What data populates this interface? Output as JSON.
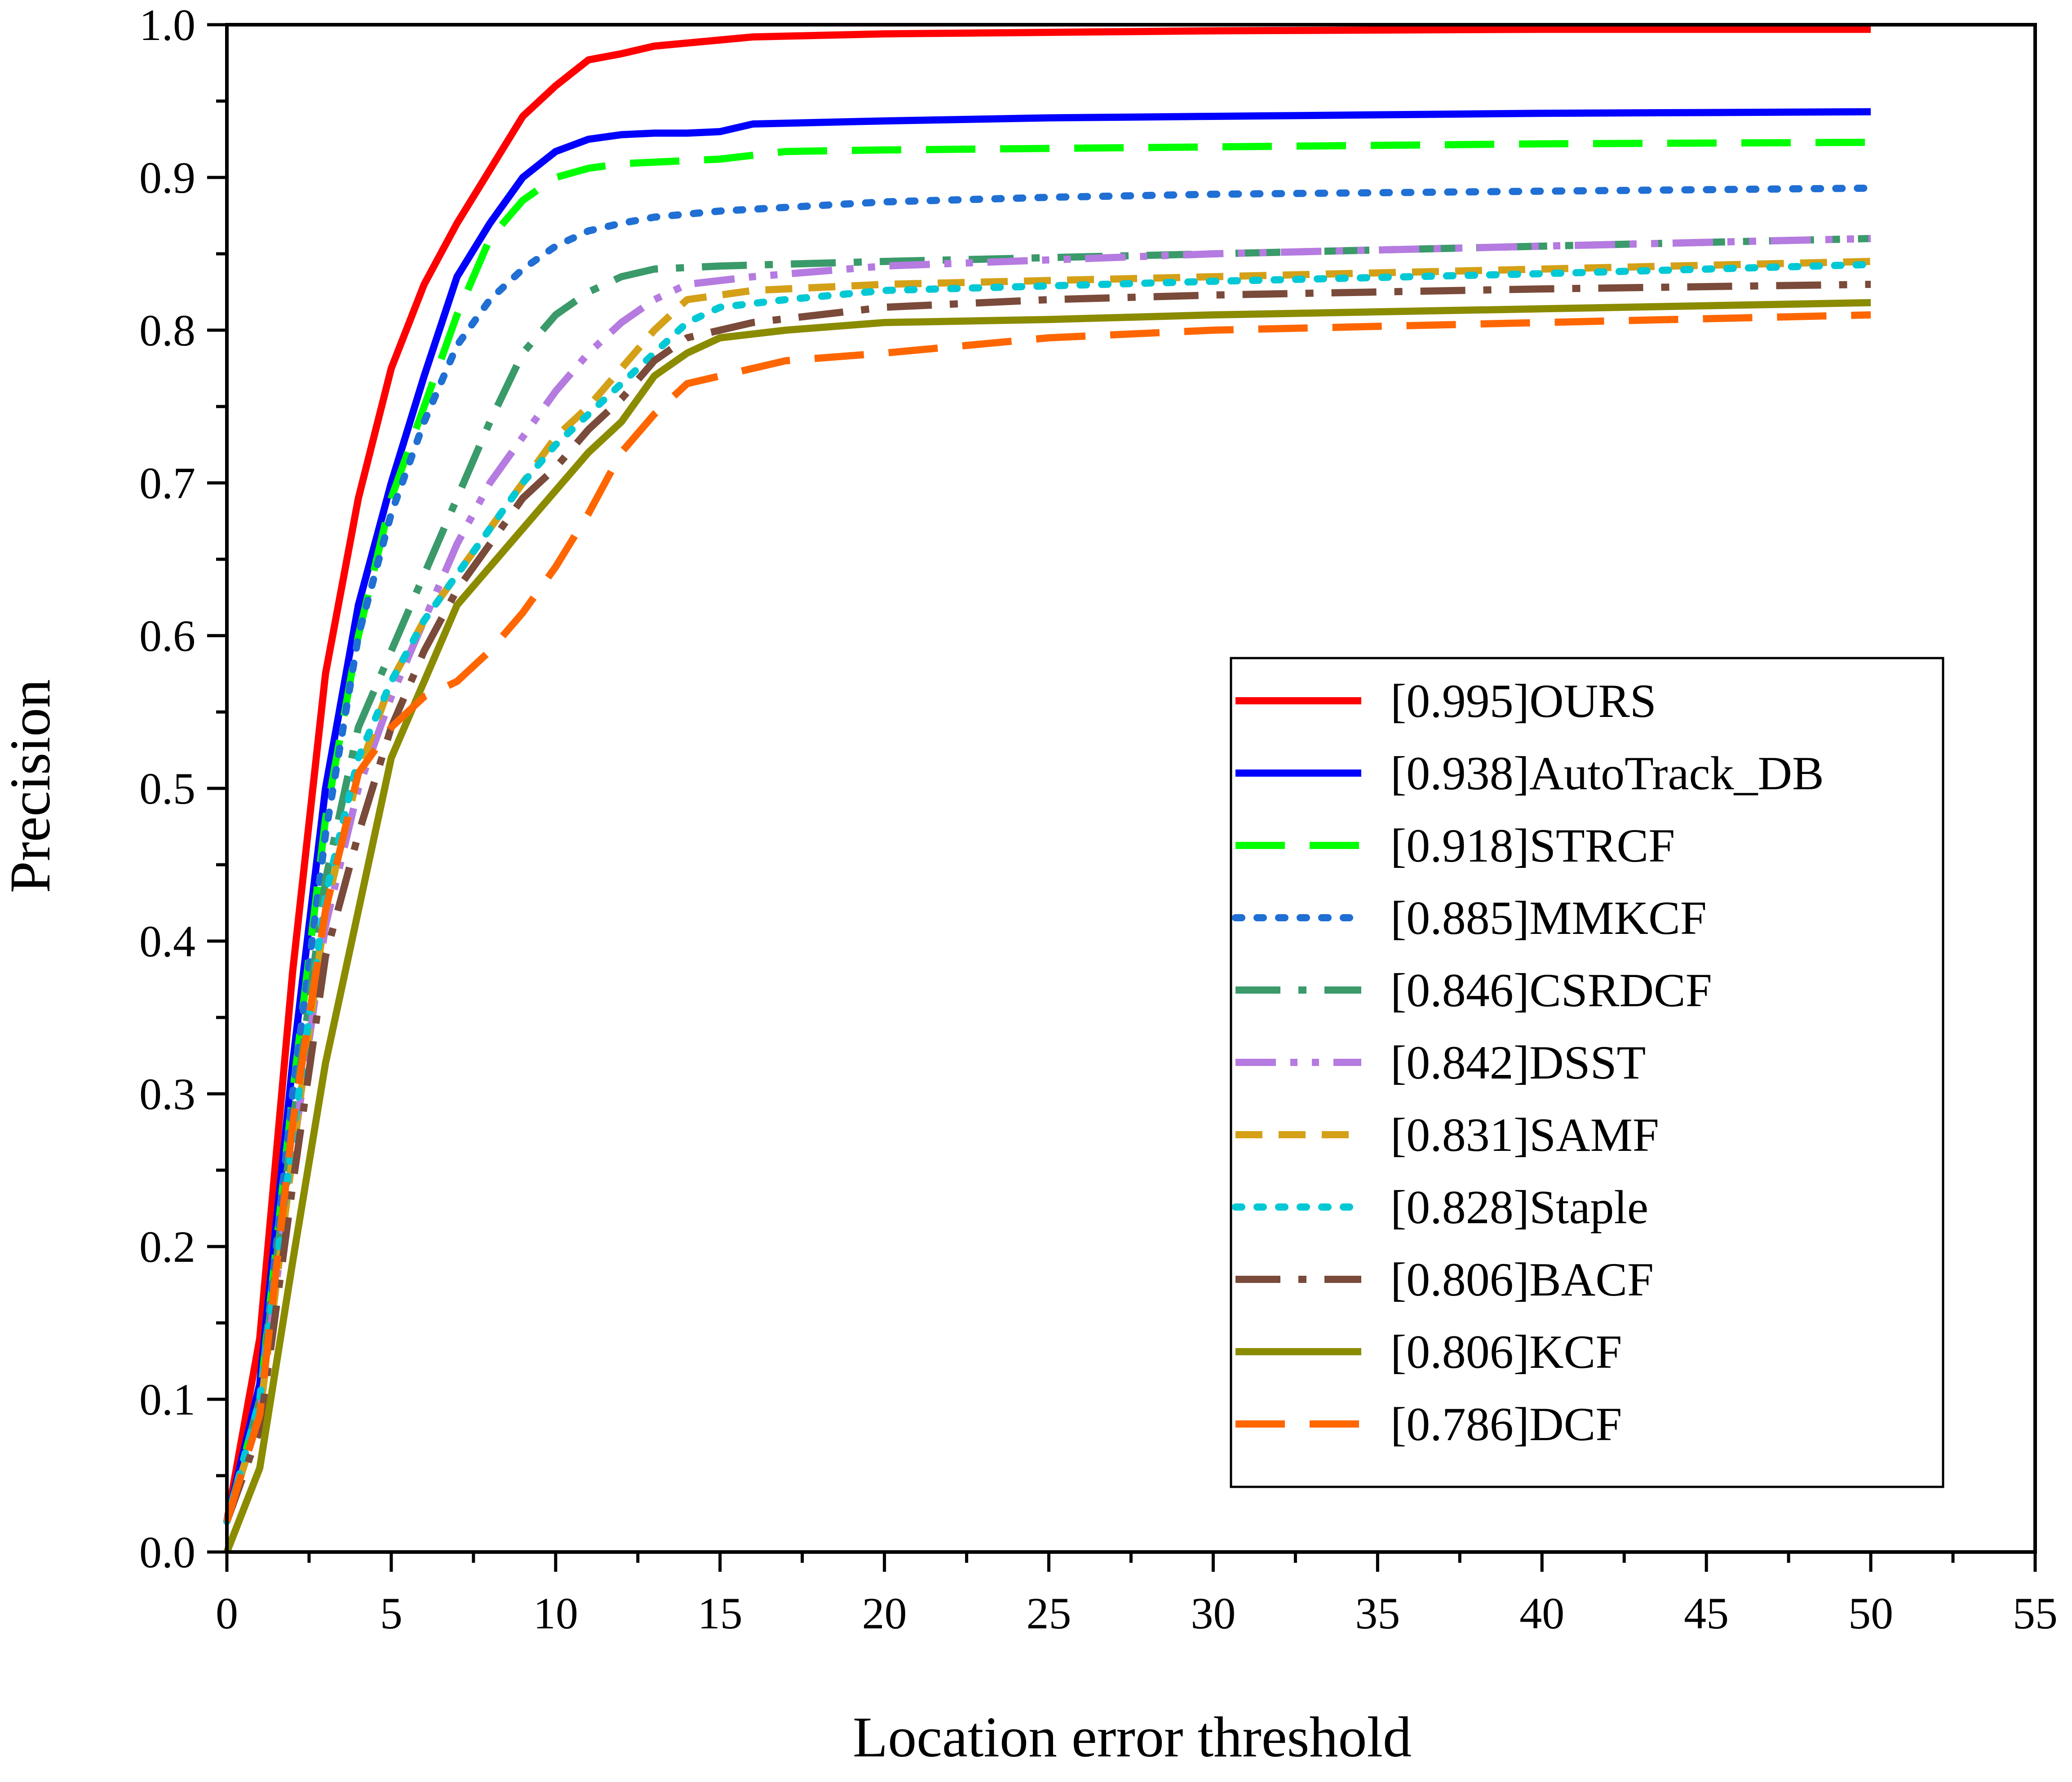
{
  "chart_data": {
    "type": "line",
    "title": "",
    "xlabel": "Location error threshold",
    "ylabel": "Precision",
    "xlim": [
      0,
      55
    ],
    "ylim": [
      0,
      1.0
    ],
    "x_ticks": [
      "0",
      "5",
      "10",
      "15",
      "20",
      "25",
      "30",
      "35",
      "40",
      "45",
      "50",
      "55"
    ],
    "y_ticks": [
      "0.0",
      "0.1",
      "0.2",
      "0.3",
      "0.4",
      "0.5",
      "0.6",
      "0.7",
      "0.8",
      "0.9",
      "1.0"
    ],
    "grid": false,
    "legend_position": "bottom-right",
    "series": [
      {
        "name": "[0.995]OURS",
        "color": "#ff0000",
        "dash": "solid",
        "points": [
          [
            0,
            0.02
          ],
          [
            1,
            0.14
          ],
          [
            2,
            0.38
          ],
          [
            3,
            0.575
          ],
          [
            4,
            0.69
          ],
          [
            5,
            0.775
          ],
          [
            6,
            0.83
          ],
          [
            7,
            0.87
          ],
          [
            8,
            0.905
          ],
          [
            9,
            0.94
          ],
          [
            10,
            0.96
          ],
          [
            11,
            0.977
          ],
          [
            12,
            0.981
          ],
          [
            13,
            0.986
          ],
          [
            14,
            0.988
          ],
          [
            15,
            0.99
          ],
          [
            16,
            0.992
          ],
          [
            18,
            0.993
          ],
          [
            20,
            0.994
          ],
          [
            25,
            0.995
          ],
          [
            30,
            0.996
          ],
          [
            40,
            0.997
          ],
          [
            50,
            0.997
          ]
        ]
      },
      {
        "name": "[0.938]AutoTrack_DB",
        "color": "#0000ff",
        "dash": "solid",
        "points": [
          [
            0,
            0.02
          ],
          [
            1,
            0.11
          ],
          [
            2,
            0.32
          ],
          [
            3,
            0.5
          ],
          [
            4,
            0.62
          ],
          [
            5,
            0.7
          ],
          [
            6,
            0.77
          ],
          [
            7,
            0.835
          ],
          [
            8,
            0.87
          ],
          [
            9,
            0.9
          ],
          [
            10,
            0.917
          ],
          [
            11,
            0.925
          ],
          [
            12,
            0.928
          ],
          [
            13,
            0.929
          ],
          [
            14,
            0.929
          ],
          [
            15,
            0.93
          ],
          [
            16,
            0.935
          ],
          [
            20,
            0.937
          ],
          [
            25,
            0.939
          ],
          [
            30,
            0.94
          ],
          [
            40,
            0.942
          ],
          [
            50,
            0.943
          ]
        ]
      },
      {
        "name": "[0.918]STRCF",
        "color": "#00ff00",
        "dash": "longdash",
        "points": [
          [
            0,
            0.02
          ],
          [
            1,
            0.1
          ],
          [
            2,
            0.3
          ],
          [
            3,
            0.48
          ],
          [
            4,
            0.6
          ],
          [
            5,
            0.69
          ],
          [
            6,
            0.75
          ],
          [
            7,
            0.81
          ],
          [
            8,
            0.86
          ],
          [
            9,
            0.885
          ],
          [
            10,
            0.9
          ],
          [
            11,
            0.906
          ],
          [
            12,
            0.909
          ],
          [
            13,
            0.91
          ],
          [
            15,
            0.912
          ],
          [
            17,
            0.917
          ],
          [
            20,
            0.918
          ],
          [
            30,
            0.92
          ],
          [
            40,
            0.922
          ],
          [
            50,
            0.923
          ]
        ]
      },
      {
        "name": "[0.885]MMKCF",
        "color": "#1f6fd4",
        "dash": "dot",
        "points": [
          [
            0,
            0.02
          ],
          [
            1,
            0.1
          ],
          [
            2,
            0.3
          ],
          [
            3,
            0.47
          ],
          [
            4,
            0.6
          ],
          [
            5,
            0.68
          ],
          [
            6,
            0.74
          ],
          [
            7,
            0.79
          ],
          [
            8,
            0.82
          ],
          [
            9,
            0.84
          ],
          [
            10,
            0.855
          ],
          [
            11,
            0.865
          ],
          [
            12,
            0.87
          ],
          [
            13,
            0.874
          ],
          [
            15,
            0.878
          ],
          [
            20,
            0.884
          ],
          [
            25,
            0.887
          ],
          [
            30,
            0.889
          ],
          [
            40,
            0.891
          ],
          [
            50,
            0.893
          ]
        ]
      },
      {
        "name": "[0.846]CSRDCF",
        "color": "#3a9a6a",
        "dash": "dashdot",
        "points": [
          [
            0,
            0.02
          ],
          [
            1,
            0.1
          ],
          [
            2,
            0.28
          ],
          [
            3,
            0.44
          ],
          [
            4,
            0.54
          ],
          [
            5,
            0.59
          ],
          [
            6,
            0.64
          ],
          [
            7,
            0.69
          ],
          [
            8,
            0.74
          ],
          [
            9,
            0.785
          ],
          [
            10,
            0.81
          ],
          [
            11,
            0.825
          ],
          [
            12,
            0.835
          ],
          [
            13,
            0.84
          ],
          [
            15,
            0.842
          ],
          [
            20,
            0.845
          ],
          [
            30,
            0.85
          ],
          [
            40,
            0.855
          ],
          [
            50,
            0.86
          ]
        ]
      },
      {
        "name": "[0.842]DSST",
        "color": "#b57be0",
        "dash": "dashdotdot",
        "points": [
          [
            0,
            0.02
          ],
          [
            1,
            0.09
          ],
          [
            2,
            0.26
          ],
          [
            3,
            0.41
          ],
          [
            4,
            0.5
          ],
          [
            5,
            0.56
          ],
          [
            6,
            0.61
          ],
          [
            7,
            0.66
          ],
          [
            8,
            0.7
          ],
          [
            9,
            0.73
          ],
          [
            10,
            0.76
          ],
          [
            11,
            0.785
          ],
          [
            12,
            0.805
          ],
          [
            13,
            0.82
          ],
          [
            14,
            0.83
          ],
          [
            16,
            0.835
          ],
          [
            20,
            0.842
          ],
          [
            30,
            0.85
          ],
          [
            40,
            0.855
          ],
          [
            50,
            0.86
          ]
        ]
      },
      {
        "name": "[0.831]SAMF",
        "color": "#d4a017",
        "dash": "dash",
        "points": [
          [
            0,
            0.02
          ],
          [
            1,
            0.09
          ],
          [
            2,
            0.26
          ],
          [
            3,
            0.42
          ],
          [
            4,
            0.51
          ],
          [
            5,
            0.57
          ],
          [
            6,
            0.61
          ],
          [
            7,
            0.64
          ],
          [
            8,
            0.67
          ],
          [
            9,
            0.7
          ],
          [
            10,
            0.73
          ],
          [
            11,
            0.75
          ],
          [
            12,
            0.775
          ],
          [
            13,
            0.8
          ],
          [
            14,
            0.82
          ],
          [
            16,
            0.826
          ],
          [
            20,
            0.83
          ],
          [
            30,
            0.835
          ],
          [
            40,
            0.84
          ],
          [
            50,
            0.845
          ]
        ]
      },
      {
        "name": "[0.828]Staple",
        "color": "#00c8d4",
        "dash": "dot",
        "points": [
          [
            0,
            0.02
          ],
          [
            1,
            0.1
          ],
          [
            2,
            0.27
          ],
          [
            3,
            0.43
          ],
          [
            4,
            0.52
          ],
          [
            5,
            0.57
          ],
          [
            6,
            0.61
          ],
          [
            7,
            0.64
          ],
          [
            8,
            0.67
          ],
          [
            9,
            0.7
          ],
          [
            10,
            0.725
          ],
          [
            11,
            0.745
          ],
          [
            12,
            0.765
          ],
          [
            13,
            0.785
          ],
          [
            14,
            0.805
          ],
          [
            15,
            0.815
          ],
          [
            17,
            0.82
          ],
          [
            20,
            0.826
          ],
          [
            30,
            0.832
          ],
          [
            40,
            0.837
          ],
          [
            50,
            0.843
          ]
        ]
      },
      {
        "name": "[0.806]BACF",
        "color": "#7a4a3a",
        "dash": "dashdot",
        "points": [
          [
            0,
            0.02
          ],
          [
            1,
            0.08
          ],
          [
            2,
            0.24
          ],
          [
            3,
            0.39
          ],
          [
            4,
            0.47
          ],
          [
            5,
            0.54
          ],
          [
            6,
            0.59
          ],
          [
            7,
            0.63
          ],
          [
            8,
            0.66
          ],
          [
            9,
            0.69
          ],
          [
            10,
            0.71
          ],
          [
            11,
            0.735
          ],
          [
            12,
            0.755
          ],
          [
            13,
            0.78
          ],
          [
            14,
            0.795
          ],
          [
            16,
            0.805
          ],
          [
            20,
            0.815
          ],
          [
            25,
            0.82
          ],
          [
            30,
            0.823
          ],
          [
            40,
            0.827
          ],
          [
            50,
            0.83
          ]
        ]
      },
      {
        "name": "[0.806]KCF",
        "color": "#8b8b00",
        "dash": "solid",
        "points": [
          [
            0,
            0.0
          ],
          [
            1,
            0.055
          ],
          [
            2,
            0.19
          ],
          [
            3,
            0.32
          ],
          [
            4,
            0.42
          ],
          [
            5,
            0.52
          ],
          [
            6,
            0.57
          ],
          [
            7,
            0.62
          ],
          [
            8,
            0.645
          ],
          [
            9,
            0.67
          ],
          [
            10,
            0.695
          ],
          [
            11,
            0.72
          ],
          [
            12,
            0.74
          ],
          [
            13,
            0.77
          ],
          [
            14,
            0.785
          ],
          [
            15,
            0.795
          ],
          [
            17,
            0.8
          ],
          [
            20,
            0.805
          ],
          [
            25,
            0.807
          ],
          [
            30,
            0.81
          ],
          [
            40,
            0.814
          ],
          [
            50,
            0.818
          ]
        ]
      },
      {
        "name": "[0.786]DCF",
        "color": "#ff6600",
        "dash": "longdash",
        "points": [
          [
            0,
            0.02
          ],
          [
            1,
            0.09
          ],
          [
            2,
            0.28
          ],
          [
            3,
            0.42
          ],
          [
            4,
            0.51
          ],
          [
            5,
            0.54
          ],
          [
            6,
            0.56
          ],
          [
            7,
            0.57
          ],
          [
            8,
            0.59
          ],
          [
            9,
            0.615
          ],
          [
            10,
            0.645
          ],
          [
            11,
            0.68
          ],
          [
            12,
            0.72
          ],
          [
            13,
            0.745
          ],
          [
            14,
            0.765
          ],
          [
            15,
            0.77
          ],
          [
            17,
            0.78
          ],
          [
            20,
            0.785
          ],
          [
            25,
            0.795
          ],
          [
            30,
            0.8
          ],
          [
            40,
            0.805
          ],
          [
            50,
            0.81
          ]
        ]
      }
    ]
  }
}
